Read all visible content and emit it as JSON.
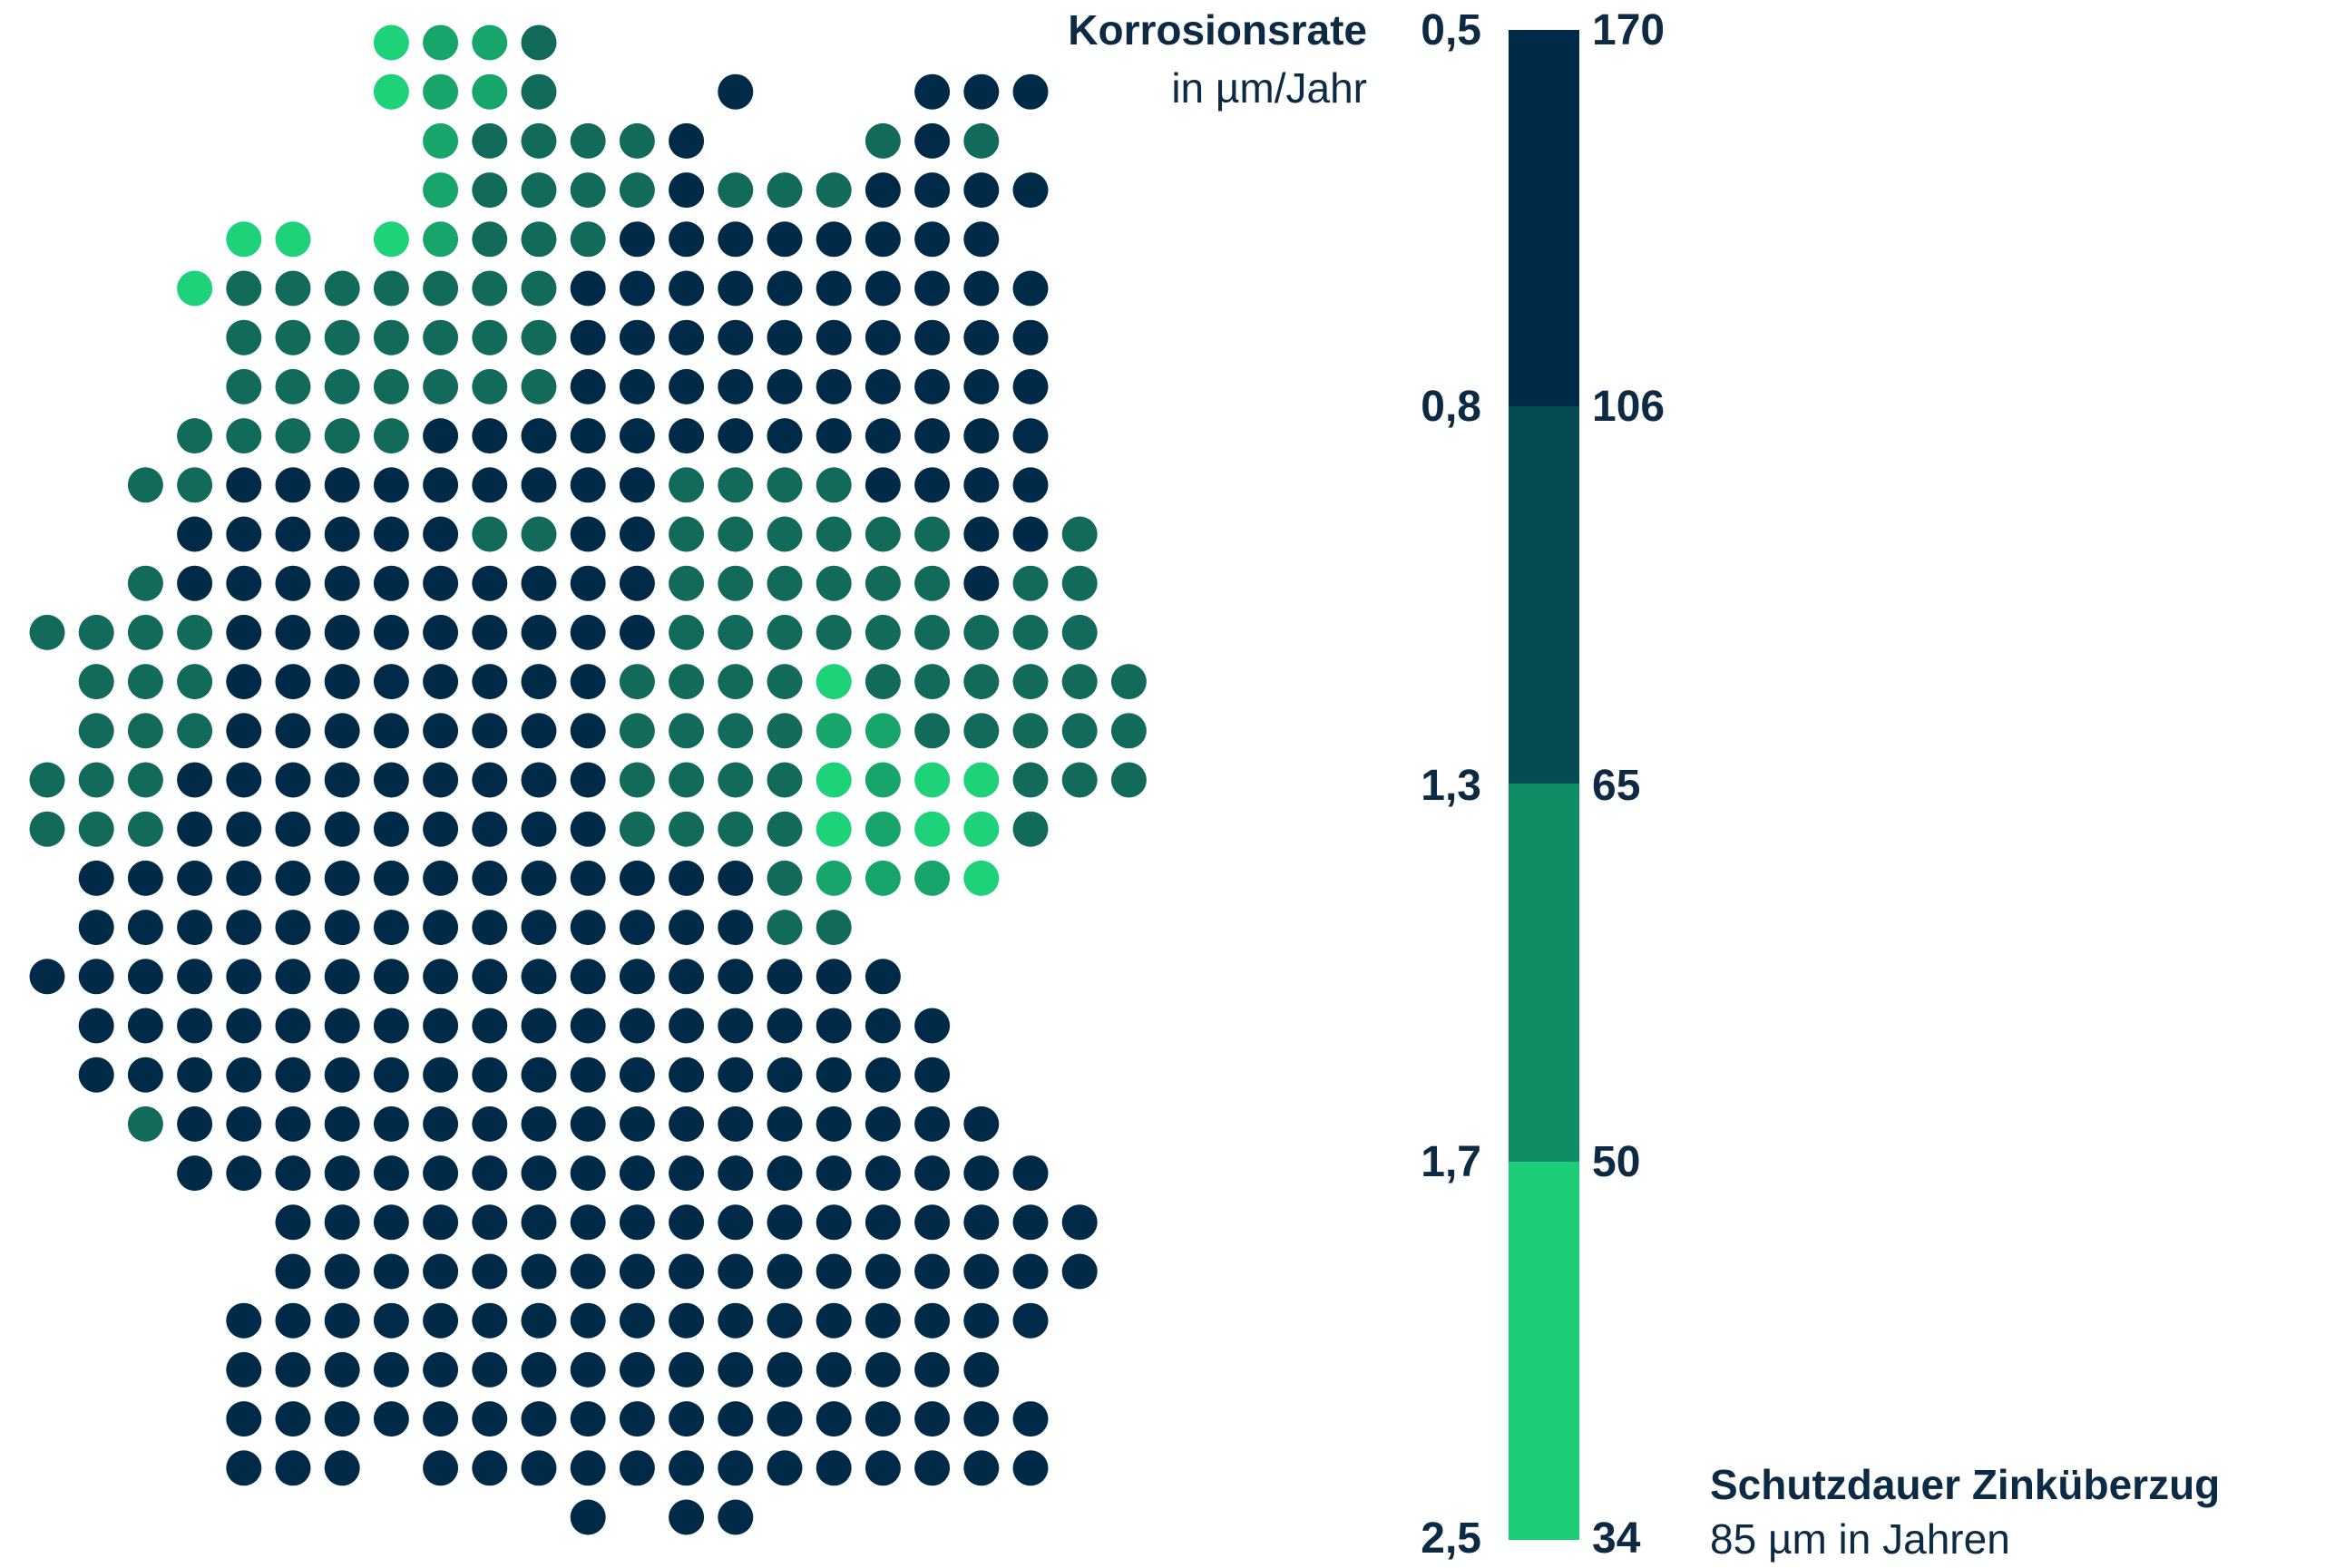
{
  "header": {
    "title": "Korrosionsrate",
    "subtitle": "in µm/Jahr"
  },
  "scale": {
    "left_labels": [
      "0,5",
      "0,8",
      "1,3",
      "1,7",
      "2,5"
    ],
    "right_labels": [
      "170",
      "106",
      "65",
      "50",
      "34"
    ],
    "colors": [
      "#002a48",
      "#044b52",
      "#0e8c64",
      "#1ccc76"
    ]
  },
  "legend": {
    "title": "Schutzdauer Zinküberzug",
    "subtitle": "85 µm in Jahren"
  },
  "colors": {
    "n": "#002a48",
    "d": "#126b5a",
    "m": "#17a56c",
    "l": "#1ed27a"
  },
  "map_rows": [
    ".......lmmd.............",
    ".......lmmd...n...nnn...",
    "........mddddn...dnd....",
    "........mddddndddnnnn...",
    "....ll.lmdddnnnnnnnn....",
    "...ldddddddnnnnnnnnnn...",
    "....dddddddnnnnnnnnnn...",
    "....dddddddnnnnnnnnnn...",
    "...dddddnnnnnnnnnnnnn...",
    "..ddnnnnnnnnnddddnnnn...",
    "...nnnnnnddnnddddddnnd..",
    "..dnnnnnnnnnnddddddndd..",
    "ddddnnnnnnnnnddddddddd..",
    ".dddnnnnnnnnddddldddddd.",
    ".dddnnnnnnnnddddmmddddd.",
    "dddnnnnnnnnnddddlmllddd.",
    "dddnnnnnnnnnddddlmlld...",
    ".nnnnnnnnnnnnnndmmml....",
    ".nnnnnnnnnnnnnndd.......",
    "nnnnnnnnnnnnnnnnnn......",
    ".nnnnnnnnnnnnnnnnnn.....",
    ".nnnnnnnnnnnnnnnnnn.....",
    "..dnnnnnnnnnnnnnnnnn....",
    "...nnnnnnnnnnnnnnnnnn...",
    ".....nnnnnnnnnnnnnnnnn..",
    ".....nnnnnnnnnnnnnnnnn..",
    "....nnnnnnnnnnnnnnnnn...",
    "....nnnnnnnnnnnnnnnn....",
    "....nnnnnnnnnnnnnnnnn...",
    "....nnn.nnnnnnnnnnnnn...",
    "...........n.nn........."
  ]
}
